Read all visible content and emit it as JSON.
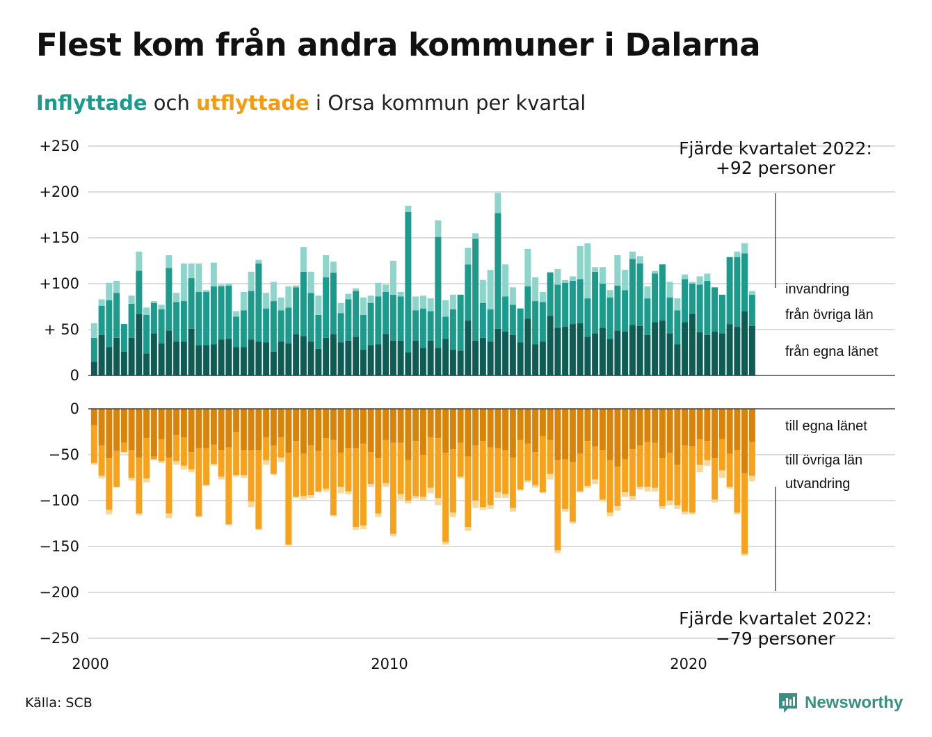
{
  "header": {
    "title": "Flest kom från andra kommuner i Dalarna",
    "subtitle_in": "Inflyttade",
    "subtitle_mid": " och ",
    "subtitle_out": "utflyttade",
    "subtitle_rest": " i Orsa kommun per kvartal"
  },
  "footer": {
    "source": "Källa: SCB",
    "brand": "Newsworthy"
  },
  "callouts": {
    "top_line1": "Fjärde kvartalet 2022:",
    "top_line2": "+92 personer",
    "bottom_line1": "Fjärde kvartalet 2022:",
    "bottom_line2": "−79 personer"
  },
  "colors": {
    "in_own_county": "#0f5c54",
    "in_other_counties": "#1c9a8c",
    "in_immigration": "#8dd4cb",
    "out_own_county": "#d98409",
    "out_other_counties": "#f8a21c",
    "out_emigration": "#fbd89a"
  },
  "chart_data": {
    "type": "bar",
    "stacked": true,
    "x_start": "2000 Q1",
    "x_end": "2022 Q4",
    "x_ticks": [
      "2000",
      "2010",
      "2020"
    ],
    "y_ticks_top": [
      "+250",
      "+200",
      "+150",
      "+100",
      "+ 50",
      "0"
    ],
    "y_ticks_bottom": [
      "0",
      "−50",
      "−100",
      "−150",
      "−200",
      "−250"
    ],
    "y_top_range": [
      0,
      250
    ],
    "y_bottom_range": [
      -250,
      0
    ],
    "labels_in": [
      "invandring",
      "från övriga län",
      "från egna länet"
    ],
    "labels_out": [
      "till egna länet",
      "till övriga län",
      "utvandring"
    ],
    "series_in": [
      {
        "name": "från egna länet",
        "values": [
          15,
          44,
          31,
          41,
          26,
          41,
          67,
          24,
          46,
          35,
          49,
          37,
          37,
          51,
          33,
          33,
          34,
          39,
          40,
          31,
          31,
          39,
          37,
          36,
          26,
          37,
          35,
          45,
          43,
          37,
          29,
          41,
          45,
          36,
          38,
          42,
          28,
          33,
          34,
          45,
          38,
          38,
          25,
          38,
          30,
          38,
          30,
          40,
          28,
          27,
          60,
          38,
          41,
          37,
          51,
          48,
          44,
          36,
          62,
          34,
          37,
          65,
          52,
          53,
          56,
          57,
          42,
          46,
          52,
          40,
          49,
          48,
          55,
          54,
          44,
          58,
          60,
          46,
          34,
          58,
          67,
          47,
          44,
          48,
          46,
          56,
          53,
          70,
          54
        ]
      },
      {
        "name": "från övriga län",
        "values": [
          26,
          32,
          51,
          49,
          30,
          37,
          47,
          42,
          33,
          37,
          68,
          43,
          44,
          55,
          58,
          58,
          63,
          58,
          58,
          33,
          40,
          53,
          85,
          37,
          55,
          34,
          39,
          51,
          70,
          53,
          37,
          66,
          67,
          32,
          45,
          50,
          38,
          46,
          52,
          46,
          50,
          48,
          153,
          33,
          43,
          32,
          121,
          24,
          44,
          61,
          61,
          111,
          38,
          35,
          126,
          38,
          33,
          37,
          35,
          47,
          43,
          47,
          47,
          48,
          47,
          48,
          42,
          67,
          48,
          45,
          49,
          45,
          72,
          68,
          40,
          53,
          61,
          39,
          37,
          47,
          33,
          52,
          59,
          48,
          42,
          73,
          76,
          63,
          34
        ]
      },
      {
        "name": "invandring",
        "values": [
          16,
          7,
          19,
          13,
          0,
          9,
          21,
          8,
          2,
          5,
          14,
          10,
          41,
          16,
          31,
          2,
          26,
          2,
          2,
          6,
          20,
          21,
          4,
          17,
          21,
          14,
          23,
          2,
          27,
          23,
          21,
          24,
          12,
          11,
          6,
          3,
          19,
          8,
          15,
          8,
          37,
          5,
          7,
          15,
          14,
          14,
          18,
          18,
          16,
          0,
          18,
          6,
          25,
          43,
          22,
          35,
          19,
          0,
          41,
          26,
          11,
          1,
          17,
          3,
          5,
          36,
          60,
          5,
          18,
          8,
          33,
          22,
          8,
          8,
          13,
          3,
          0,
          17,
          13,
          5,
          2,
          9,
          8,
          0,
          0,
          0,
          6,
          11,
          4
        ]
      }
    ],
    "series_out": [
      {
        "name": "till egna länet",
        "values": [
          -18,
          -40,
          -54,
          -46,
          -37,
          -45,
          -53,
          -32,
          -52,
          -33,
          -53,
          -29,
          -31,
          -47,
          -43,
          -43,
          -39,
          -45,
          -42,
          -25,
          -45,
          -45,
          -45,
          -31,
          -40,
          -31,
          -48,
          -35,
          -49,
          -40,
          -46,
          -32,
          -34,
          -48,
          -43,
          -43,
          -38,
          -47,
          -54,
          -34,
          -37,
          -37,
          -56,
          -35,
          -50,
          -31,
          -32,
          -48,
          -44,
          -37,
          -52,
          -40,
          -35,
          -42,
          -43,
          -45,
          -53,
          -34,
          -38,
          -47,
          -30,
          -34,
          -56,
          -55,
          -58,
          -49,
          -35,
          -41,
          -45,
          -56,
          -63,
          -55,
          -44,
          -40,
          -36,
          -37,
          -54,
          -48,
          -61,
          -40,
          -41,
          -33,
          -35,
          -54,
          -33,
          -49,
          -45,
          -70,
          -36
        ]
      },
      {
        "name": "till övriga län",
        "values": [
          -41,
          -33,
          -56,
          -39,
          -10,
          -30,
          -61,
          -44,
          -3,
          -24,
          -61,
          -28,
          -31,
          -19,
          -74,
          -40,
          -21,
          -29,
          -84,
          -47,
          -27,
          -56,
          -86,
          -25,
          -31,
          -22,
          -100,
          -61,
          -46,
          -54,
          -44,
          -55,
          -82,
          -37,
          -47,
          -86,
          -89,
          -35,
          -60,
          -47,
          -99,
          -56,
          -44,
          -60,
          -46,
          -55,
          -65,
          -97,
          -69,
          -37,
          -77,
          -60,
          -72,
          -63,
          -48,
          -48,
          -55,
          -54,
          -40,
          -36,
          -61,
          -37,
          -98,
          -54,
          -65,
          -41,
          -49,
          -36,
          -54,
          -57,
          -43,
          -36,
          -51,
          -45,
          -49,
          -49,
          -52,
          -52,
          -44,
          -72,
          -72,
          -28,
          -21,
          -45,
          -34,
          -36,
          -68,
          -88,
          -37
        ]
      },
      {
        "name": "utvandring",
        "values": [
          -2,
          -3,
          -5,
          -1,
          -1,
          -3,
          -2,
          -4,
          -1,
          -2,
          -5,
          -4,
          -4,
          -3,
          -1,
          -1,
          -2,
          -3,
          -1,
          -2,
          -3,
          -6,
          -1,
          -5,
          -1,
          -5,
          -1,
          -1,
          -4,
          -3,
          -1,
          -3,
          -1,
          -7,
          -3,
          -3,
          -4,
          -3,
          -4,
          -4,
          -3,
          -6,
          -3,
          -3,
          -4,
          -6,
          -8,
          -3,
          -5,
          -2,
          -4,
          -8,
          -3,
          -4,
          -6,
          -4,
          -4,
          -1,
          -2,
          -3,
          -1,
          -6,
          -3,
          -3,
          -2,
          -1,
          -2,
          -5,
          -2,
          -4,
          -5,
          -5,
          -5,
          -3,
          -5,
          -4,
          -3,
          -5,
          -4,
          -3,
          -2,
          -8,
          -6,
          -3,
          -8,
          -2,
          -2,
          -2,
          -6
        ]
      }
    ]
  }
}
